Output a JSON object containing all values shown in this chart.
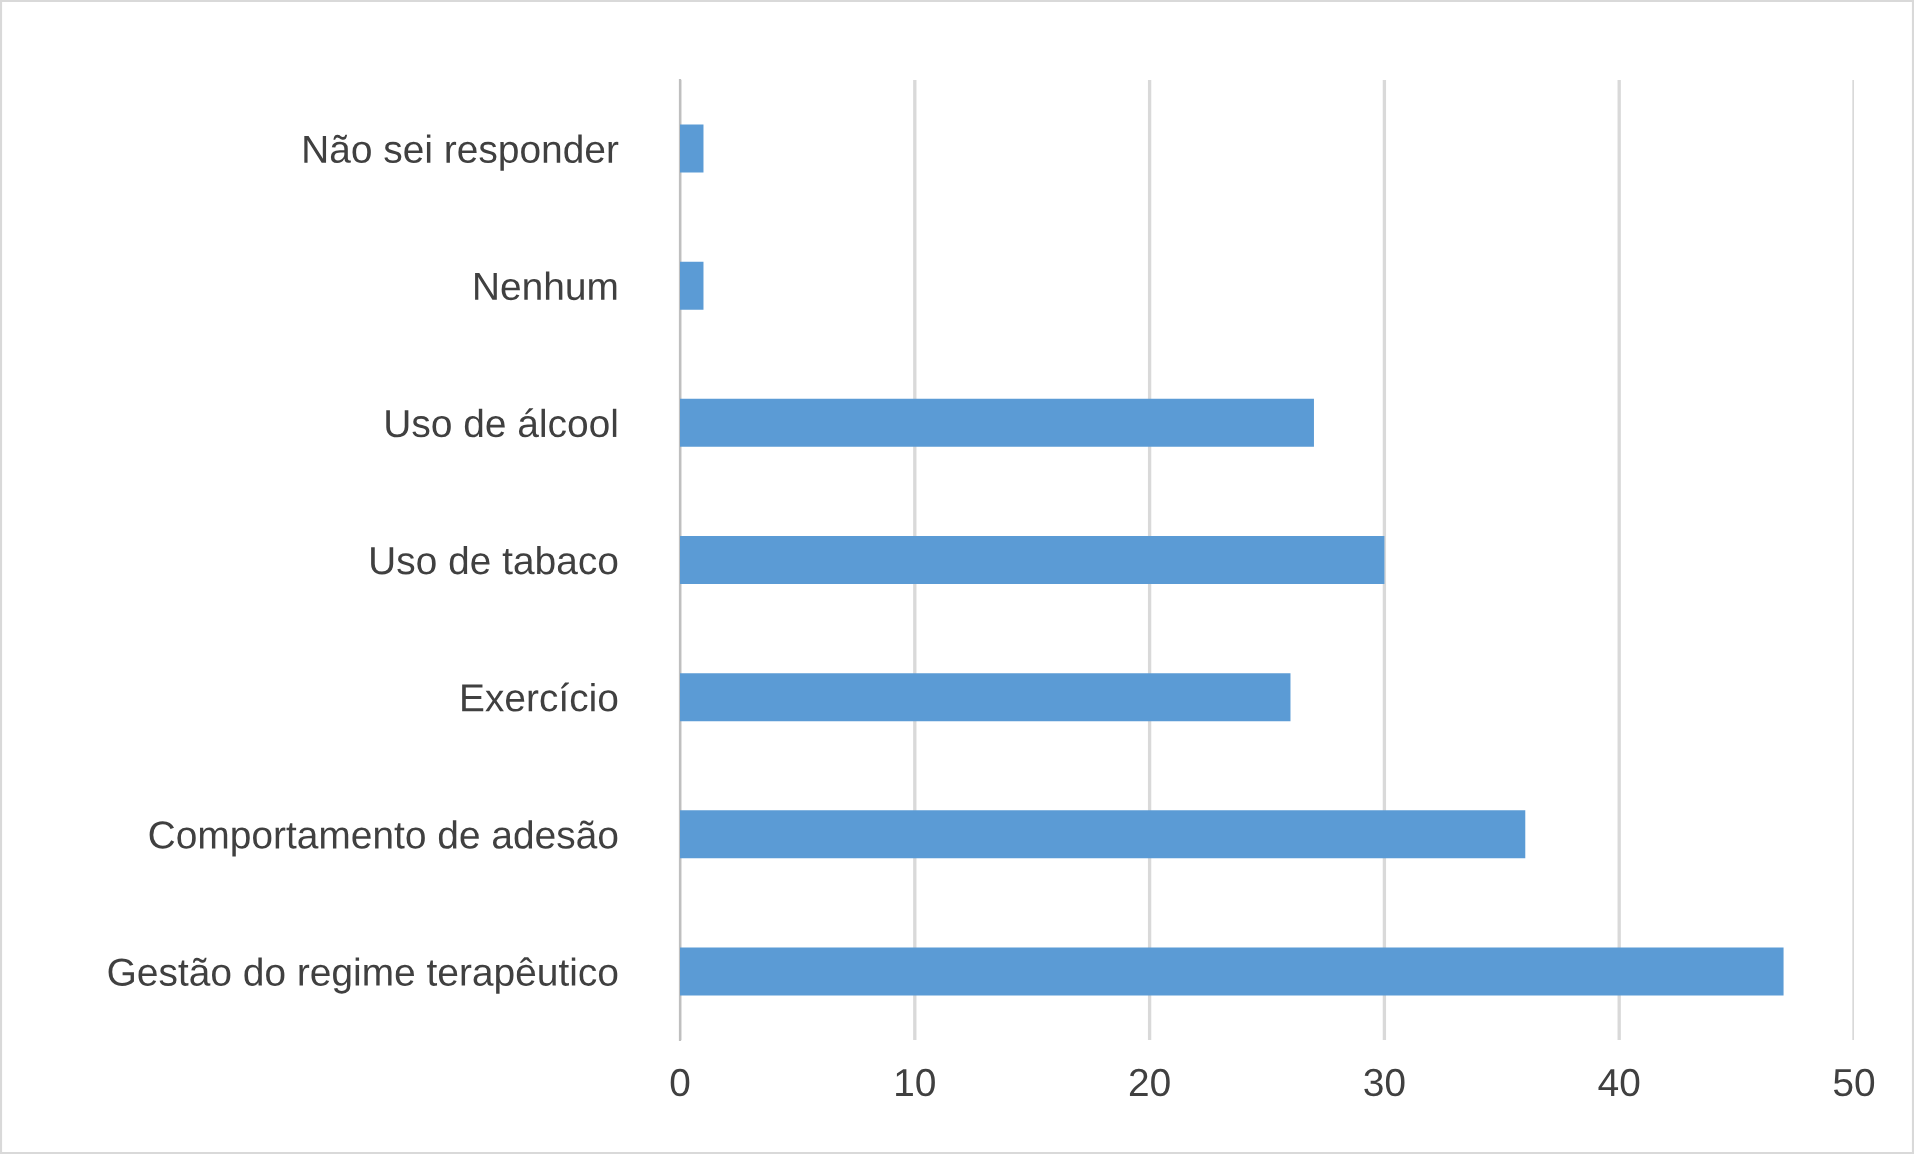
{
  "chart_data": {
    "type": "bar",
    "orientation": "horizontal",
    "categories": [
      "Não sei responder",
      "Nenhum",
      "Uso de álcool",
      "Uso de tabaco",
      "Exercício",
      "Comportamento de adesão",
      "Gestão do regime terapêutico"
    ],
    "values": [
      1,
      1,
      27,
      30,
      26,
      36,
      47
    ],
    "color": "#5b9bd5",
    "xlim": [
      0,
      50
    ],
    "xticks": [
      0,
      10,
      20,
      30,
      40,
      50
    ],
    "grid": "x",
    "legend": false
  }
}
